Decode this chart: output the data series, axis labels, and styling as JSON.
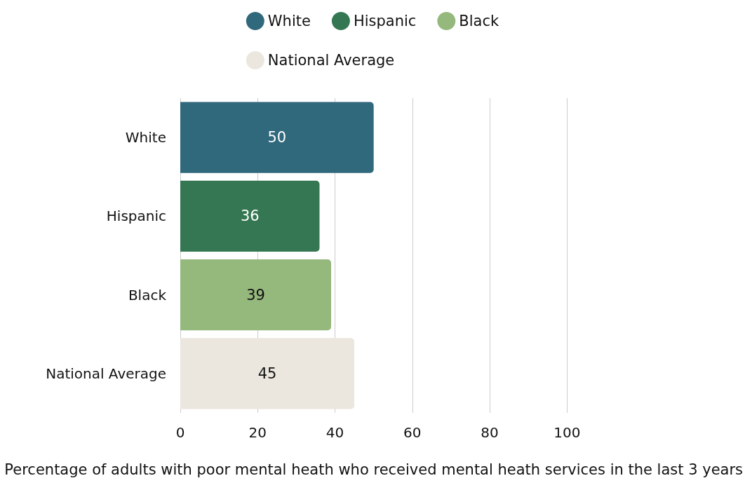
{
  "chart_data": {
    "type": "bar",
    "orientation": "horizontal",
    "stacked": true,
    "categories": [
      "White",
      "Hispanic",
      "Black",
      "National Average"
    ],
    "series": [
      {
        "name": "White",
        "color": "#30687c",
        "values": [
          50,
          null,
          null,
          null
        ]
      },
      {
        "name": "Hispanic",
        "color": "#357752",
        "values": [
          null,
          36,
          null,
          null
        ]
      },
      {
        "name": "Black",
        "color": "#95b87d",
        "values": [
          null,
          null,
          39,
          null
        ]
      },
      {
        "name": "National Average",
        "color": "#ebe6de",
        "values": [
          null,
          null,
          null,
          45
        ]
      }
    ],
    "xlim": [
      0,
      100
    ],
    "xticks": [
      0,
      20,
      40,
      60,
      80,
      100
    ],
    "xlabel": "Percentage of adults with poor mental heath who received mental heath services in the last 3 years",
    "grid": "x",
    "legend": "top",
    "data_labels": true
  }
}
